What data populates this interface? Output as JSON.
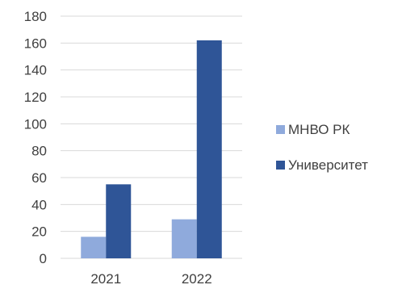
{
  "chart_data": {
    "type": "bar",
    "title": "",
    "xlabel": "",
    "ylabel": "",
    "categories": [
      "2021",
      "2022"
    ],
    "ylim": [
      0,
      180
    ],
    "yticks": [
      0,
      20,
      40,
      60,
      80,
      100,
      120,
      140,
      160,
      180
    ],
    "grid": true,
    "legend_position": "right",
    "series": [
      {
        "name": "МНВО РК",
        "color": "#8faadc",
        "values": [
          16,
          29
        ]
      },
      {
        "name": "Университет",
        "color": "#2f5597",
        "values": [
          55,
          162
        ]
      }
    ]
  }
}
